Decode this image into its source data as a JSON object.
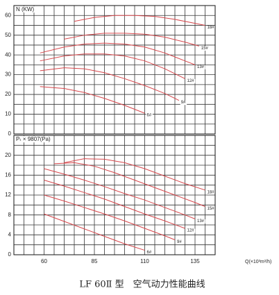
{
  "caption": "LF 60Ⅱ 型　空气动力性能曲线",
  "chart_data": [
    {
      "type": "line",
      "ylabel": "N (KW)",
      "color": "#d6454a",
      "xlim": [
        45,
        145
      ],
      "xticks": [],
      "xgrid": [
        45,
        50,
        55,
        60,
        65,
        70,
        75,
        80,
        85,
        90,
        95,
        100,
        105,
        110,
        115,
        120,
        125,
        130,
        135,
        140,
        145
      ],
      "ylim": [
        0,
        65
      ],
      "yticks": [
        0,
        10,
        20,
        30,
        40,
        50,
        60
      ],
      "ygrid": [
        0,
        5,
        10,
        15,
        20,
        25,
        30,
        35,
        40,
        45,
        50,
        55,
        60,
        65
      ],
      "series": [
        {
          "name": "18#",
          "x": [
            75,
            85,
            95,
            105,
            115,
            125,
            135,
            140
          ],
          "values": [
            57,
            59,
            60,
            60,
            59.5,
            58,
            56,
            55
          ]
        },
        {
          "name": "15#",
          "x": [
            70,
            80,
            90,
            100,
            110,
            120,
            130,
            137
          ],
          "values": [
            48,
            50,
            51,
            51,
            50.5,
            49,
            46.5,
            44.5
          ]
        },
        {
          "name": "13#",
          "x": [
            58,
            70,
            80,
            90,
            100,
            110,
            120,
            130,
            135
          ],
          "values": [
            41,
            44,
            45.5,
            46,
            45.5,
            44,
            41,
            37,
            35
          ]
        },
        {
          "name": "12#",
          "x": [
            58,
            70,
            80,
            90,
            100,
            110,
            120,
            130
          ],
          "values": [
            37,
            39.5,
            40.5,
            40.5,
            39.5,
            37,
            33,
            28
          ]
        },
        {
          "name": "9#",
          "x": [
            58,
            70,
            80,
            90,
            100,
            110,
            120,
            127
          ],
          "values": [
            32,
            33.5,
            33,
            31,
            28,
            24.5,
            20.5,
            17
          ]
        },
        {
          "name": "6#",
          "x": [
            58,
            70,
            80,
            90,
            100,
            110
          ],
          "values": [
            24,
            23,
            21,
            18,
            14.5,
            10.5
          ]
        }
      ]
    },
    {
      "type": "line",
      "ylabel": "Pₜ × 9807(Pa)",
      "xlabel": "Q(×10³m³/h)",
      "color": "#d6454a",
      "xlim": [
        45,
        145
      ],
      "xticks": [
        60,
        85,
        110,
        135
      ],
      "xgrid": [
        45,
        50,
        55,
        60,
        65,
        70,
        75,
        80,
        85,
        90,
        95,
        100,
        105,
        110,
        115,
        120,
        125,
        130,
        135,
        140,
        145
      ],
      "ylim": [
        0,
        24
      ],
      "yticks": [
        0,
        4,
        8,
        12,
        16,
        20
      ],
      "ygrid": [
        0,
        2,
        4,
        6,
        8,
        10,
        12,
        14,
        16,
        18,
        20,
        22,
        24
      ],
      "series": [
        {
          "name": "18#",
          "x": [
            70,
            80,
            90,
            100,
            110,
            120,
            130,
            140
          ],
          "values": [
            18.5,
            19.3,
            19.2,
            18.5,
            17.3,
            15.8,
            14.3,
            13
          ]
        },
        {
          "name": "15#",
          "x": [
            65,
            75,
            85,
            95,
            105,
            115,
            125,
            135,
            140
          ],
          "values": [
            18.3,
            18.5,
            17.8,
            16.5,
            15,
            13.5,
            12,
            10.5,
            9.7
          ]
        },
        {
          "name": "13#",
          "x": [
            60,
            70,
            80,
            90,
            100,
            110,
            120,
            130,
            135
          ],
          "values": [
            17.3,
            16.2,
            15,
            13.7,
            12.3,
            11,
            9.5,
            8,
            7.2
          ]
        },
        {
          "name": "12#",
          "x": [
            60,
            70,
            80,
            90,
            100,
            110,
            120,
            130
          ],
          "values": [
            15,
            13.8,
            12.5,
            11.2,
            9.7,
            8.2,
            6.8,
            5.3
          ]
        },
        {
          "name": "9#",
          "x": [
            60,
            70,
            80,
            90,
            100,
            110,
            120,
            125
          ],
          "values": [
            12,
            10.8,
            9.5,
            8.2,
            6.8,
            5.3,
            3.8,
            3
          ]
        },
        {
          "name": "6#",
          "x": [
            60,
            70,
            80,
            90,
            100,
            110
          ],
          "values": [
            8.2,
            6.7,
            5.2,
            3.7,
            2.2,
            0.9
          ]
        }
      ]
    }
  ]
}
